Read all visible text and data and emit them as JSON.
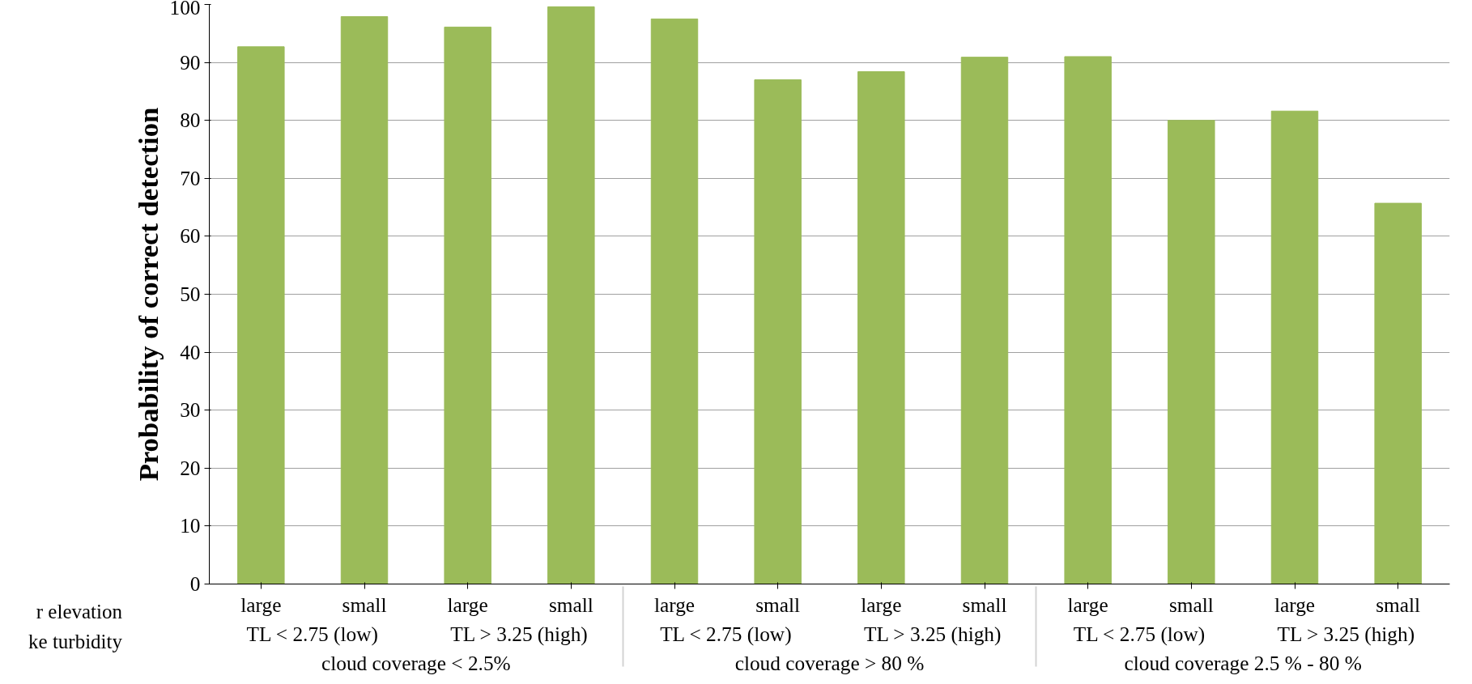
{
  "chart_data": {
    "type": "bar",
    "ylabel": "Probability of correct detection",
    "categories": [
      [
        "cloud coverage < 2.5%",
        "TL < 2.75 (low)",
        "large"
      ],
      [
        null,
        null,
        "small"
      ],
      [
        null,
        "TL > 3.25 (high)",
        "large"
      ],
      [
        null,
        null,
        "small"
      ],
      [
        "cloud coverage > 80 %",
        "TL < 2.75 (low)",
        "large"
      ],
      [
        null,
        null,
        "small"
      ],
      [
        null,
        "TL > 3.25 (high)",
        "large"
      ],
      [
        null,
        null,
        "small"
      ],
      [
        "cloud coverage 2.5 % - 80 %",
        "TL < 2.75 (low)",
        "large"
      ],
      [
        null,
        null,
        "small"
      ],
      [
        null,
        "TL > 3.25 (high)",
        "large"
      ],
      [
        null,
        null,
        "small"
      ]
    ],
    "values": [
      92.7,
      97.9,
      96.1,
      99.6,
      97.5,
      87.0,
      88.4,
      90.9,
      91.0,
      80.0,
      81.6,
      65.7
    ],
    "color": "#9bbb59",
    "ylim": [
      0,
      100
    ],
    "yticks": [
      0,
      10,
      20,
      30,
      40,
      50,
      60,
      70,
      80,
      90,
      100
    ],
    "grid": "y",
    "annotations": [
      "r elevation",
      "ke turbidity"
    ]
  }
}
